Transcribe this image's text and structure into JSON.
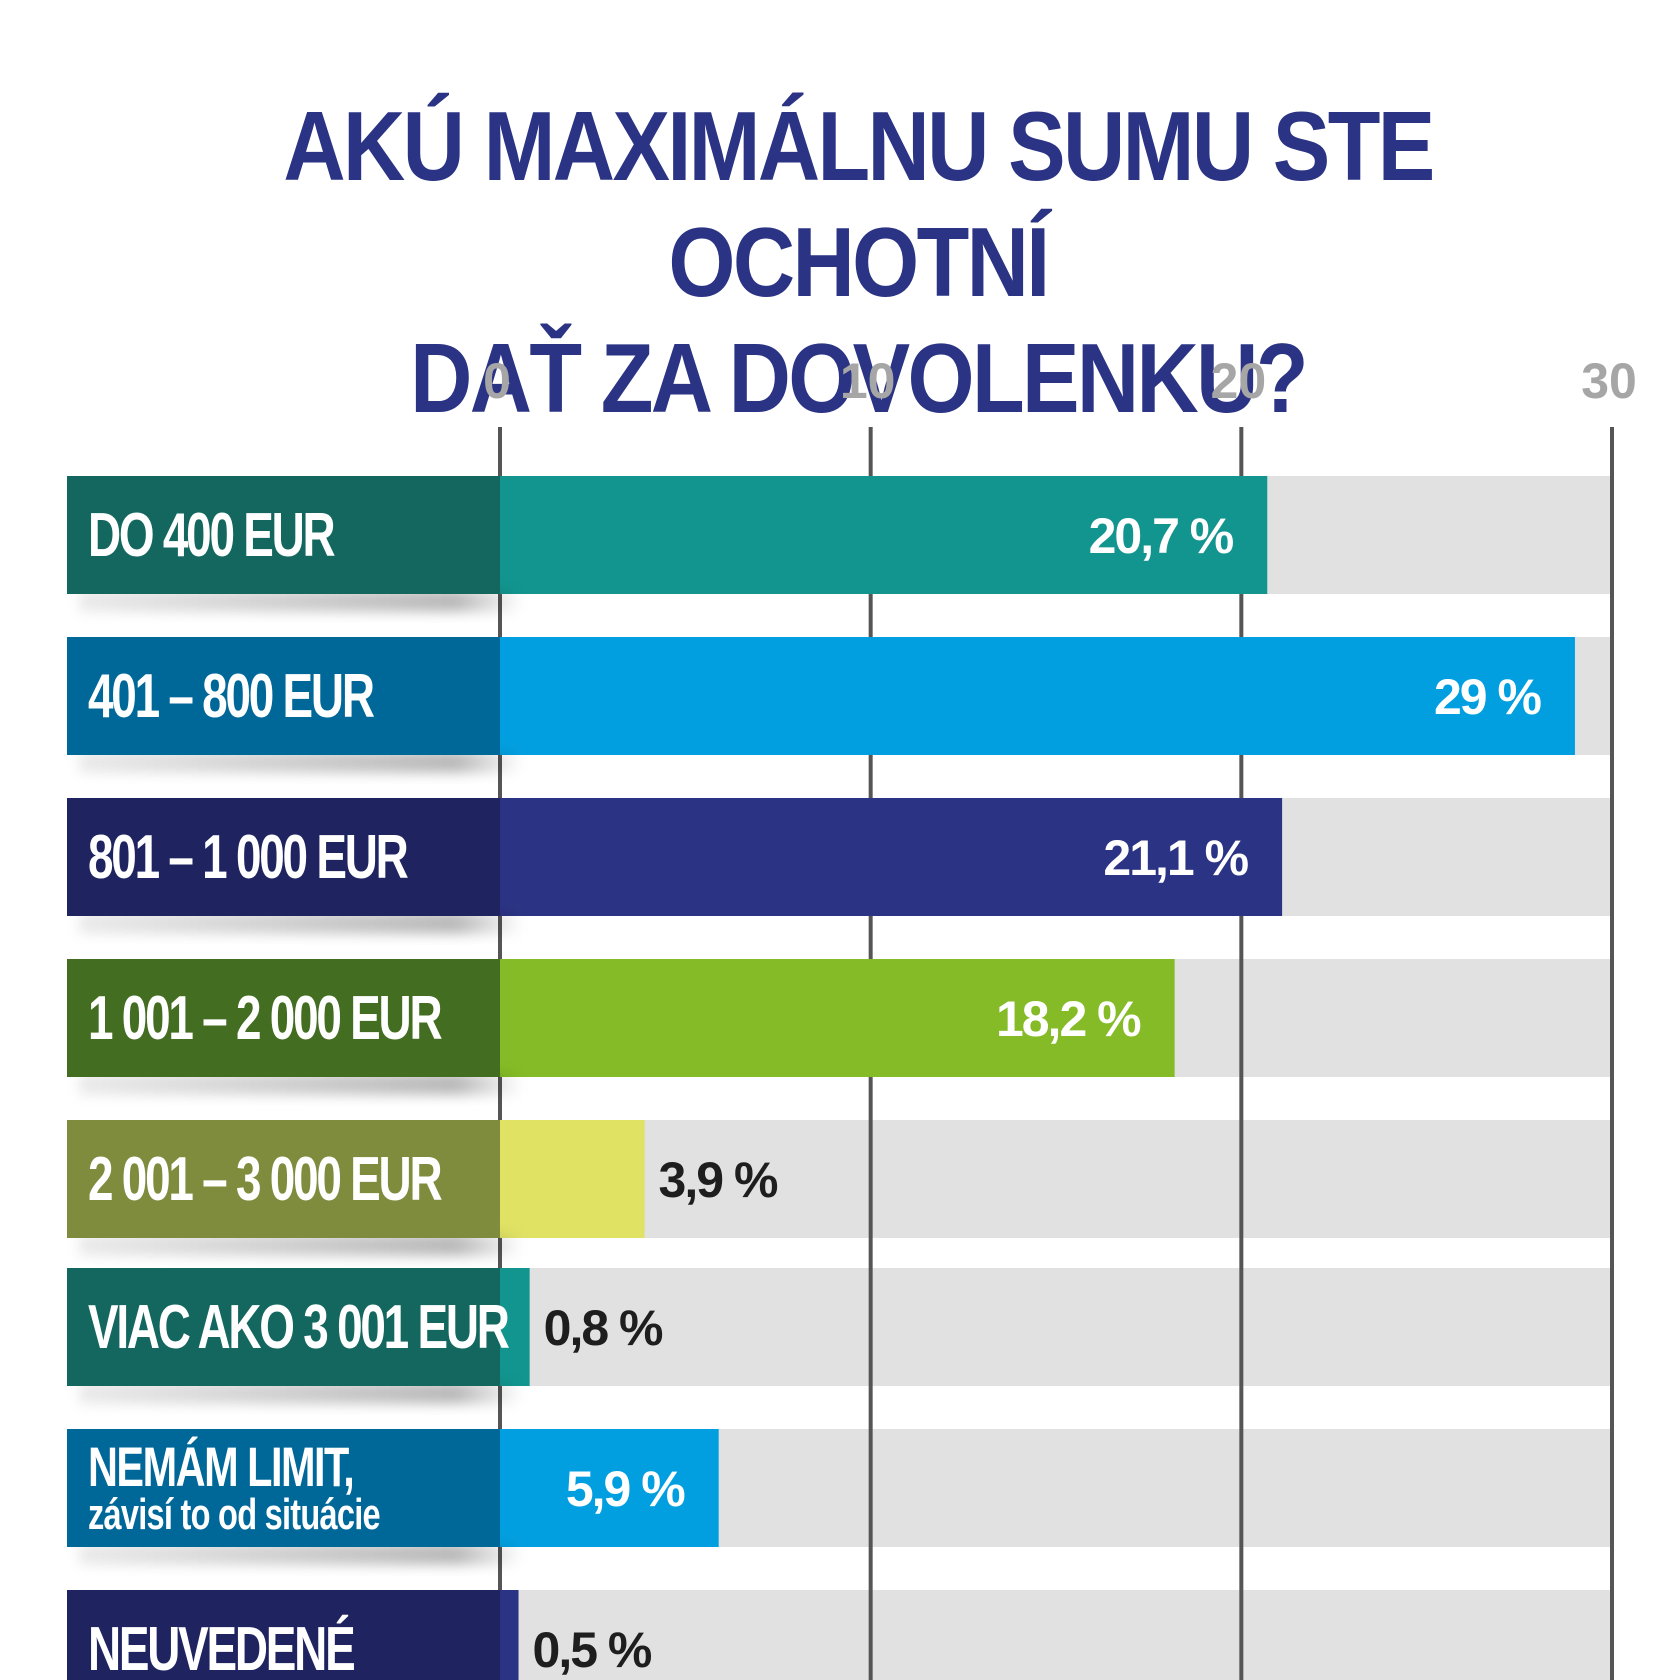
{
  "chart_data": {
    "type": "bar",
    "orientation": "horizontal",
    "title_lines": [
      "AKÚ MAXIMÁLNU SUMU STE OCHOTNÍ",
      "DAŤ ZA DOVOLENKU?"
    ],
    "xlim": [
      0,
      30
    ],
    "x_ticks": [
      "0",
      "10",
      "20",
      "30"
    ],
    "grid": true,
    "categories": [
      [
        "DO 400 EUR"
      ],
      [
        "401 – 800 EUR"
      ],
      [
        "801 – 1 000 EUR"
      ],
      [
        "1 001 – 2 000 EUR"
      ],
      [
        "2 001 – 3 000 EUR"
      ],
      [
        "VIAC AKO 3 001 EUR"
      ],
      [
        "NEMÁM LIMIT,",
        "závisí to od situácie"
      ],
      [
        "NEUVEDENÉ"
      ]
    ],
    "values": [
      20.7,
      29,
      21.1,
      18.2,
      3.9,
      0.8,
      5.9,
      0.5
    ],
    "value_labels": [
      "20,7  %",
      "29 %",
      "21,1 %",
      "18,2 %",
      "3,9 %",
      "0,8 %",
      "5,9 %",
      "0,5 %"
    ],
    "label_colors": [
      "#13675f",
      "#006799",
      "#1f2461",
      "#436d21",
      "#7f8c3d",
      "#13675f",
      "#006799",
      "#1f2461"
    ],
    "bar_colors": [
      "#12958f",
      "#029fe0",
      "#2b3384",
      "#84bb26",
      "#dfe263",
      "#12958f",
      "#029fe0",
      "#2b3384"
    ],
    "value_label_colors": [
      "#ffffff",
      "#ffffff",
      "#ffffff",
      "#ffffff",
      "#1e1e1e",
      "#1e1e1e",
      "#ffffff",
      "#1e1e1e"
    ],
    "track_color": "#e1e1e1",
    "grid_color": "#555555"
  }
}
